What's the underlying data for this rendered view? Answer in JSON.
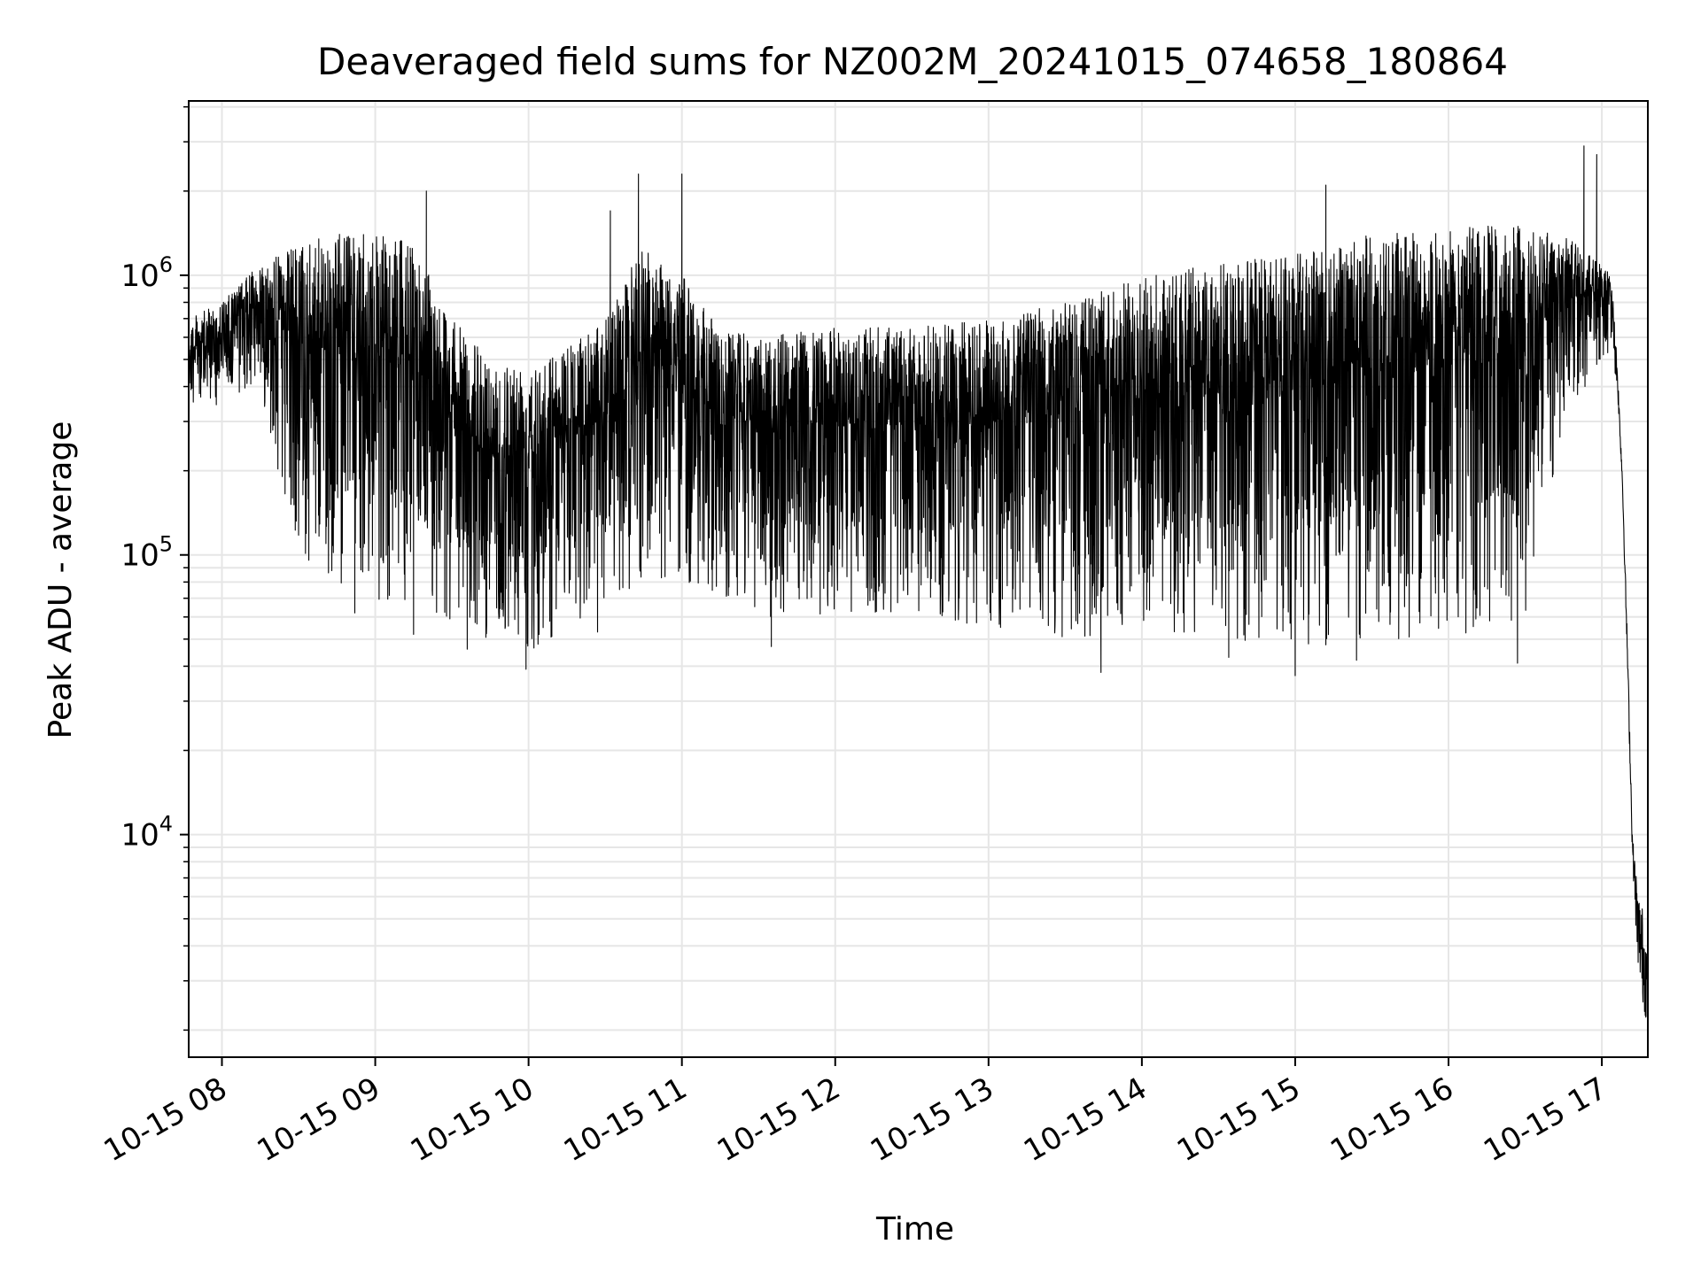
{
  "chart_data": {
    "type": "line",
    "title": "Deaveraged field sums for NZ002M_20241015_074658_180864",
    "xlabel": "Time",
    "ylabel": "Peak ADU - average",
    "yscale": "log",
    "grid": true,
    "x_start": "2024-10-15 07:47",
    "x_end": "2024-10-15 17:18",
    "xlim": [
      "2024-10-15 07:47",
      "2024-10-15 17:18"
    ],
    "ylim": [
      1600,
      4200000
    ],
    "x_ticks": [
      "10-15 08",
      "10-15 09",
      "10-15 10",
      "10-15 11",
      "10-15 12",
      "10-15 13",
      "10-15 14",
      "10-15 15",
      "10-15 16",
      "10-15 17"
    ],
    "x_tick_hours": [
      8,
      9,
      10,
      11,
      12,
      13,
      14,
      15,
      16,
      17
    ],
    "y_ticks": [
      {
        "base": "10",
        "exp": "4",
        "value": 10000
      },
      {
        "base": "10",
        "exp": "5",
        "value": 100000
      },
      {
        "base": "10",
        "exp": "6",
        "value": 1000000
      }
    ],
    "series": [
      {
        "color": "#000000",
        "profile": [
          {
            "t": "07:47",
            "high": 700000,
            "low": 300000
          },
          {
            "t": "08:00",
            "high": 800000,
            "low": 350000
          },
          {
            "t": "08:15",
            "high": 1100000,
            "low": 400000
          },
          {
            "t": "08:30",
            "high": 1300000,
            "low": 90000
          },
          {
            "t": "08:45",
            "high": 1400000,
            "low": 80000
          },
          {
            "t": "09:00",
            "high": 1400000,
            "low": 70000
          },
          {
            "t": "09:15",
            "high": 1300000,
            "low": 60000
          },
          {
            "t": "09:30",
            "high": 700000,
            "low": 55000
          },
          {
            "t": "09:45",
            "high": 500000,
            "low": 50000
          },
          {
            "t": "10:00",
            "high": 500000,
            "low": 45000
          },
          {
            "t": "10:15",
            "high": 550000,
            "low": 55000
          },
          {
            "t": "10:30",
            "high": 700000,
            "low": 60000
          },
          {
            "t": "10:45",
            "high": 1300000,
            "low": 80000
          },
          {
            "t": "11:00",
            "high": 1000000,
            "low": 80000
          },
          {
            "t": "11:15",
            "high": 650000,
            "low": 70000
          },
          {
            "t": "11:30",
            "high": 600000,
            "low": 60000
          },
          {
            "t": "12:00",
            "high": 650000,
            "low": 60000
          },
          {
            "t": "12:30",
            "high": 650000,
            "low": 60000
          },
          {
            "t": "13:00",
            "high": 700000,
            "low": 55000
          },
          {
            "t": "13:30",
            "high": 800000,
            "low": 50000
          },
          {
            "t": "14:00",
            "high": 1000000,
            "low": 50000
          },
          {
            "t": "14:30",
            "high": 1100000,
            "low": 50000
          },
          {
            "t": "15:00",
            "high": 1200000,
            "low": 45000
          },
          {
            "t": "15:30",
            "high": 1400000,
            "low": 50000
          },
          {
            "t": "16:00",
            "high": 1500000,
            "low": 50000
          },
          {
            "t": "16:30",
            "high": 1500000,
            "low": 60000
          },
          {
            "t": "16:45",
            "high": 1400000,
            "low": 300000
          },
          {
            "t": "17:00",
            "high": 1100000,
            "low": 500000
          },
          {
            "t": "17:04",
            "high": 1000000,
            "low": 500000
          },
          {
            "t": "17:06",
            "high": 500000,
            "low": 400000
          },
          {
            "t": "17:08",
            "high": 200000,
            "low": 180000
          },
          {
            "t": "17:10",
            "high": 50000,
            "low": 40000
          },
          {
            "t": "17:12",
            "high": 10000,
            "low": 8000
          },
          {
            "t": "17:14",
            "high": 6500,
            "low": 3500
          },
          {
            "t": "17:16",
            "high": 5500,
            "low": 2500
          },
          {
            "t": "17:18",
            "high": 4000,
            "low": 2000
          }
        ],
        "spikes": [
          {
            "t": "08:46",
            "value": 1400000
          },
          {
            "t": "09:20",
            "value": 2000000
          },
          {
            "t": "10:32",
            "value": 1700000
          },
          {
            "t": "10:43",
            "value": 2300000
          },
          {
            "t": "11:00",
            "value": 2300000
          },
          {
            "t": "15:12",
            "value": 2100000
          },
          {
            "t": "16:53",
            "value": 2900000
          },
          {
            "t": "16:58",
            "value": 2700000
          }
        ],
        "dips": [
          {
            "t": "08:52",
            "value": 62000
          },
          {
            "t": "09:15",
            "value": 52000
          },
          {
            "t": "09:36",
            "value": 46000
          },
          {
            "t": "09:59",
            "value": 39000
          },
          {
            "t": "10:27",
            "value": 53000
          },
          {
            "t": "11:35",
            "value": 47000
          },
          {
            "t": "13:44",
            "value": 38000
          },
          {
            "t": "14:34",
            "value": 43000
          },
          {
            "t": "15:00",
            "value": 37000
          },
          {
            "t": "15:24",
            "value": 42000
          },
          {
            "t": "16:27",
            "value": 41000
          }
        ]
      }
    ]
  }
}
